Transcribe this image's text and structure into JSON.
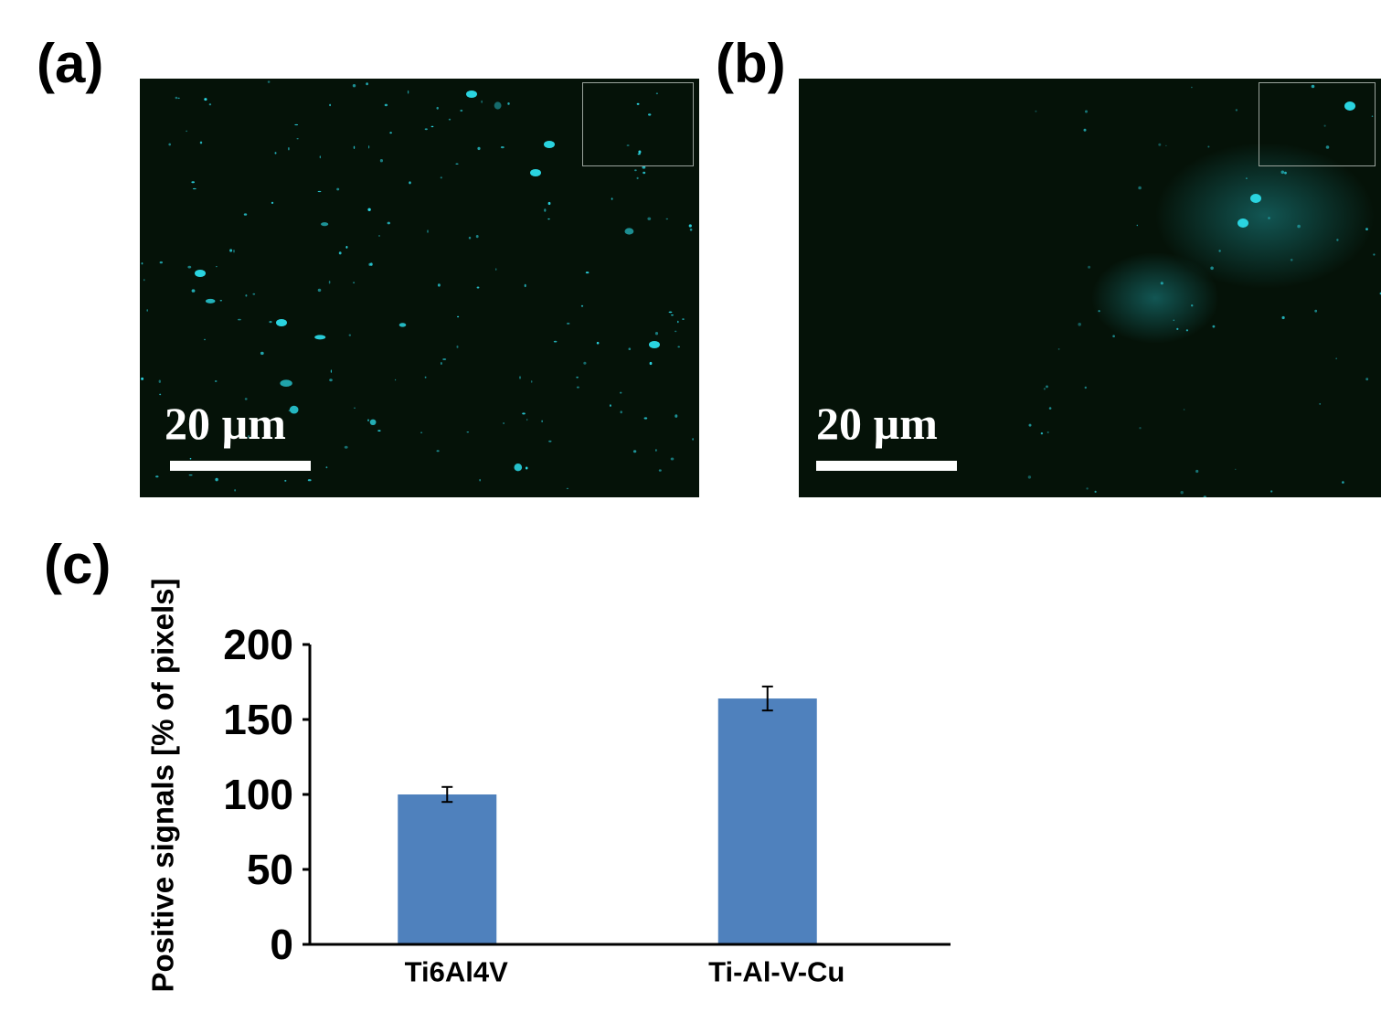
{
  "panels": {
    "a": {
      "label": "(a)",
      "scale_text": "20 µm"
    },
    "b": {
      "label": "(b)",
      "scale_text": "20 µm"
    },
    "c": {
      "label": "(c)"
    }
  },
  "colors": {
    "micro_background": "#051208",
    "signal": "#2ad4e0",
    "bar_fill": "#4f81bd",
    "axis": "#000000"
  },
  "chart_data": {
    "type": "bar",
    "title": "",
    "xlabel": "",
    "ylabel": "Positive signals [% of pixels]",
    "categories": [
      "Ti6Al4V",
      "Ti-Al-V-Cu"
    ],
    "values": [
      100,
      164
    ],
    "errors": [
      5,
      8
    ],
    "ylim": [
      0,
      200
    ],
    "yticks": [
      0,
      50,
      100,
      150,
      200
    ],
    "ytick_labels": [
      "0",
      "50",
      "100",
      "150",
      "200"
    ],
    "grid": false,
    "legend": "none"
  }
}
